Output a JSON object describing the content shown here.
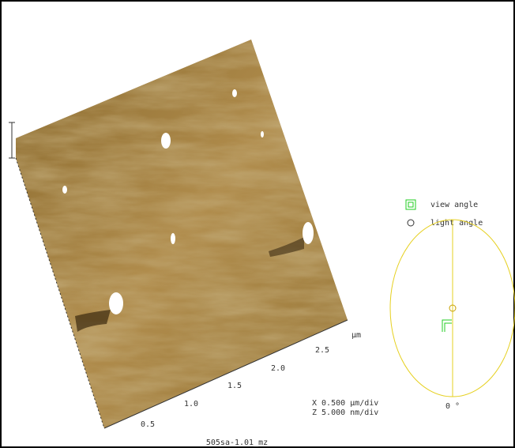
{
  "x_axis": {
    "ticks": [
      "0.5",
      "1.0",
      "1.5",
      "2.0",
      "2.5"
    ],
    "unit": "µm"
  },
  "legend": {
    "view": "view angle",
    "light": "light angle"
  },
  "angle_label": "0 °",
  "scale": {
    "x": "X  0.500 µm/div",
    "z": "Z  5.000 nm/div"
  },
  "filename": "505sa-1.01_mz"
}
